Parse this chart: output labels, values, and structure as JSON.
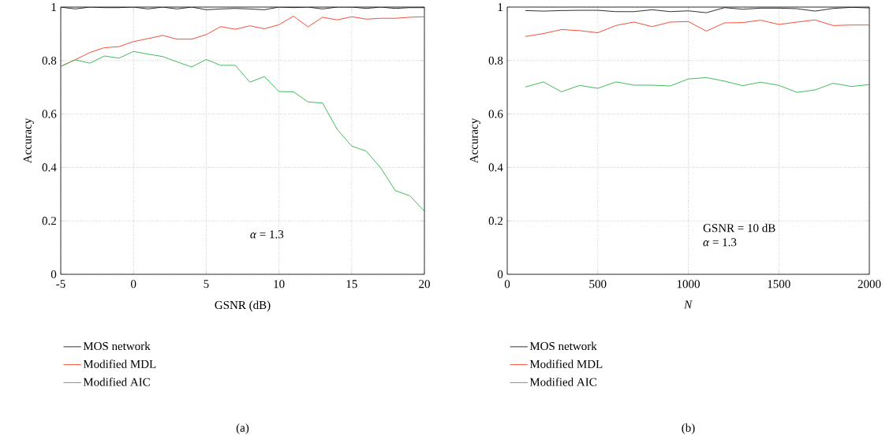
{
  "chart_data": [
    {
      "type": "line",
      "xlabel": "GSNR (dB)",
      "ylabel": "Accuracy",
      "x": [
        -5,
        -4,
        -3,
        -2,
        -1,
        0,
        1,
        2,
        3,
        4,
        5,
        6,
        7,
        8,
        9,
        10,
        11,
        12,
        13,
        14,
        15,
        16,
        17,
        18,
        19,
        20
      ],
      "series": [
        {
          "name": "MOS network",
          "color": "#1a1a1a",
          "values": [
            1,
            0.993,
            1,
            0.998,
            0.998,
            1,
            0.993,
            1,
            0.993,
            1,
            0.99,
            0.993,
            0.995,
            0.993,
            0.99,
            1,
            0.998,
            1,
            0.993,
            1,
            1,
            0.995,
            1,
            0.995,
            0.998,
            0.998
          ]
        },
        {
          "name": "Modified MDL",
          "color": "#f03c24",
          "values": [
            0.778,
            0.803,
            0.83,
            0.848,
            0.852,
            0.871,
            0.882,
            0.894,
            0.88,
            0.88,
            0.897,
            0.927,
            0.917,
            0.93,
            0.919,
            0.934,
            0.966,
            0.926,
            0.962,
            0.952,
            0.964,
            0.955,
            0.958,
            0.958,
            0.962,
            0.964
          ]
        },
        {
          "name": "Modified AIC",
          "color": "#2db34a",
          "values": [
            0.778,
            0.803,
            0.79,
            0.817,
            0.809,
            0.834,
            0.824,
            0.815,
            0.795,
            0.776,
            0.804,
            0.782,
            0.782,
            0.719,
            0.74,
            0.684,
            0.683,
            0.645,
            0.641,
            0.543,
            0.48,
            0.461,
            0.398,
            0.313,
            0.294,
            0.236
          ]
        }
      ],
      "xlim": [
        -5,
        20
      ],
      "ylim": [
        0,
        1
      ],
      "xticks": [
        -5,
        0,
        5,
        10,
        15,
        20
      ],
      "yticks": [
        0,
        0.2,
        0.4,
        0.6,
        0.8,
        1
      ],
      "grid": true,
      "legend": "bottom",
      "line_style": "solid",
      "marker": "none",
      "annotations": [
        "*α* = 1.3",
        "(a)"
      ]
    },
    {
      "type": "line",
      "xlabel": "*N*",
      "ylabel": "Accuracy",
      "x": [
        100,
        200,
        300,
        400,
        500,
        600,
        700,
        800,
        900,
        1000,
        1100,
        1200,
        1300,
        1400,
        1500,
        1600,
        1700,
        1800,
        1900,
        2000
      ],
      "series": [
        {
          "name": "MOS network",
          "color": "#1a1a1a",
          "values": [
            0.987,
            0.985,
            0.987,
            0.988,
            0.988,
            0.983,
            0.983,
            0.99,
            0.983,
            0.986,
            0.979,
            0.998,
            0.992,
            0.996,
            0.996,
            0.994,
            0.985,
            0.995,
            0.999,
            0.997
          ]
        },
        {
          "name": "Modified MDL",
          "color": "#f03c24",
          "values": [
            0.89,
            0.901,
            0.916,
            0.912,
            0.904,
            0.931,
            0.944,
            0.927,
            0.944,
            0.946,
            0.91,
            0.941,
            0.942,
            0.951,
            0.935,
            0.944,
            0.952,
            0.931,
            0.933,
            0.933
          ]
        },
        {
          "name": "Modified AIC",
          "color": "#2db34a",
          "values": [
            0.701,
            0.72,
            0.683,
            0.707,
            0.696,
            0.72,
            0.708,
            0.708,
            0.705,
            0.731,
            0.736,
            0.723,
            0.706,
            0.719,
            0.707,
            0.681,
            0.69,
            0.715,
            0.703,
            0.71
          ]
        }
      ],
      "xlim": [
        0,
        2000
      ],
      "ylim": [
        0,
        1
      ],
      "xticks": [
        0,
        500,
        1000,
        1500,
        2000
      ],
      "yticks": [
        0,
        0.2,
        0.4,
        0.6,
        0.8,
        1
      ],
      "grid": true,
      "legend": "bottom",
      "line_style": "solid",
      "marker": "none",
      "annotations": [
        "GSNR = 10 dB",
        "*α* = 1.3",
        "(b)"
      ]
    }
  ]
}
